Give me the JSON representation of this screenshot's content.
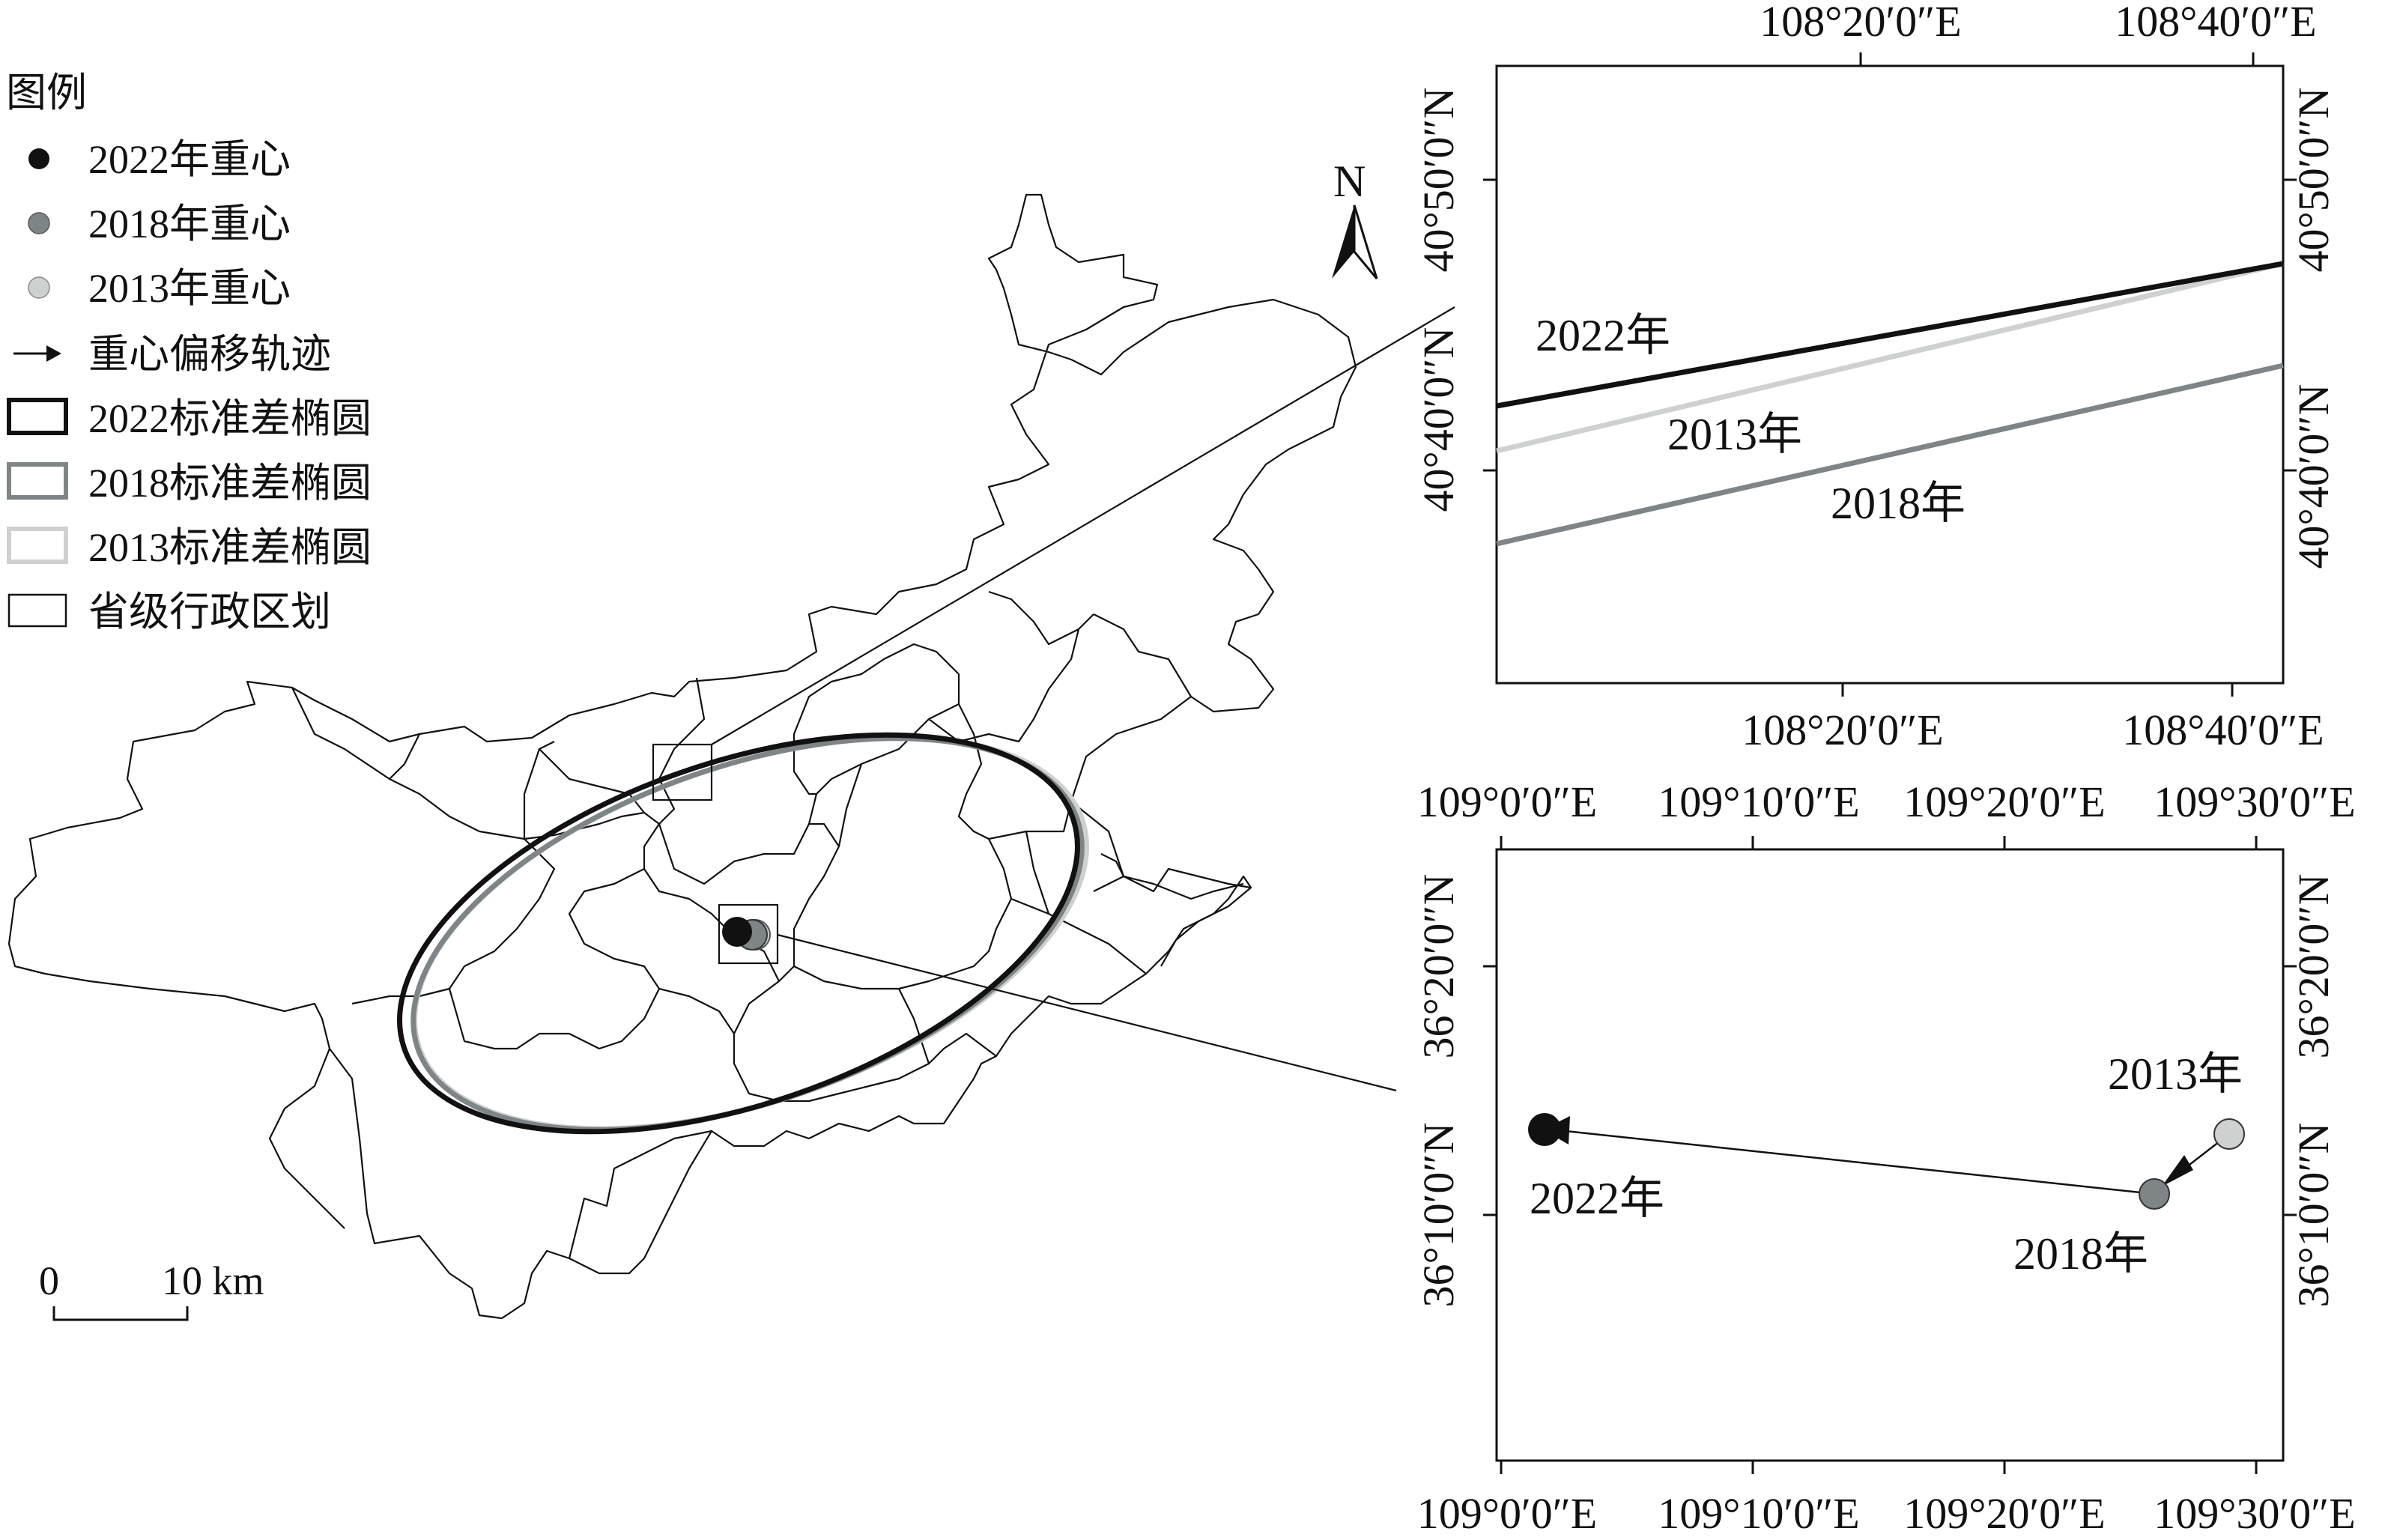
{
  "legend": {
    "title": "图例",
    "items": [
      {
        "label": "2022年重心",
        "symbol": "point",
        "color": "#111111"
      },
      {
        "label": "2018年重心",
        "symbol": "point",
        "color": "#7f8587"
      },
      {
        "label": "2013年重心",
        "symbol": "point",
        "color": "#cfd1d1"
      },
      {
        "label": "重心偏移轨迹",
        "symbol": "arrow",
        "color": "#111111"
      },
      {
        "label": "2022标准差椭圆",
        "symbol": "box",
        "color": "#111111"
      },
      {
        "label": "2018标准差椭圆",
        "symbol": "box",
        "color": "#7f8587"
      },
      {
        "label": "2013标准差椭圆",
        "symbol": "box",
        "color": "#cfd1d1"
      },
      {
        "label": "省级行政区划",
        "symbol": "box-thin",
        "color": "#111111"
      }
    ]
  },
  "north_arrow": {
    "label": "N"
  },
  "scale_bar": {
    "zero": "0",
    "end": "10 km"
  },
  "inset_top": {
    "x_ticks_top": [
      "108°20′0″E",
      "108°40′0″E"
    ],
    "x_ticks_bottom": [
      "108°20′0″E",
      "108°40′0″E"
    ],
    "y_ticks_left": [
      "40°50′0″N",
      "40°40′0″N"
    ],
    "y_ticks_right": [
      "40°50′0″N",
      "40°40′0″N"
    ],
    "labels": {
      "y2022": "2022年",
      "y2013": "2013年",
      "y2018": "2018年"
    }
  },
  "inset_bottom": {
    "x_ticks_top": [
      "109°0′0″E",
      "109°10′0″E",
      "109°20′0″E",
      "109°30′0″E"
    ],
    "x_ticks_bottom": [
      "109°0′0″E",
      "109°10′0″E",
      "109°20′0″E",
      "109°30′0″E"
    ],
    "y_ticks_left": [
      "36°20′0″N",
      "36°10′0″N"
    ],
    "y_ticks_right": [
      "36°20′0″N",
      "36°10′0″N"
    ],
    "labels": {
      "y2022": "2022年",
      "y2013": "2013年",
      "y2018": "2018年"
    }
  },
  "colors": {
    "black": "#111111",
    "mid_gray": "#7f8587",
    "light_gray": "#cfd1d1"
  }
}
